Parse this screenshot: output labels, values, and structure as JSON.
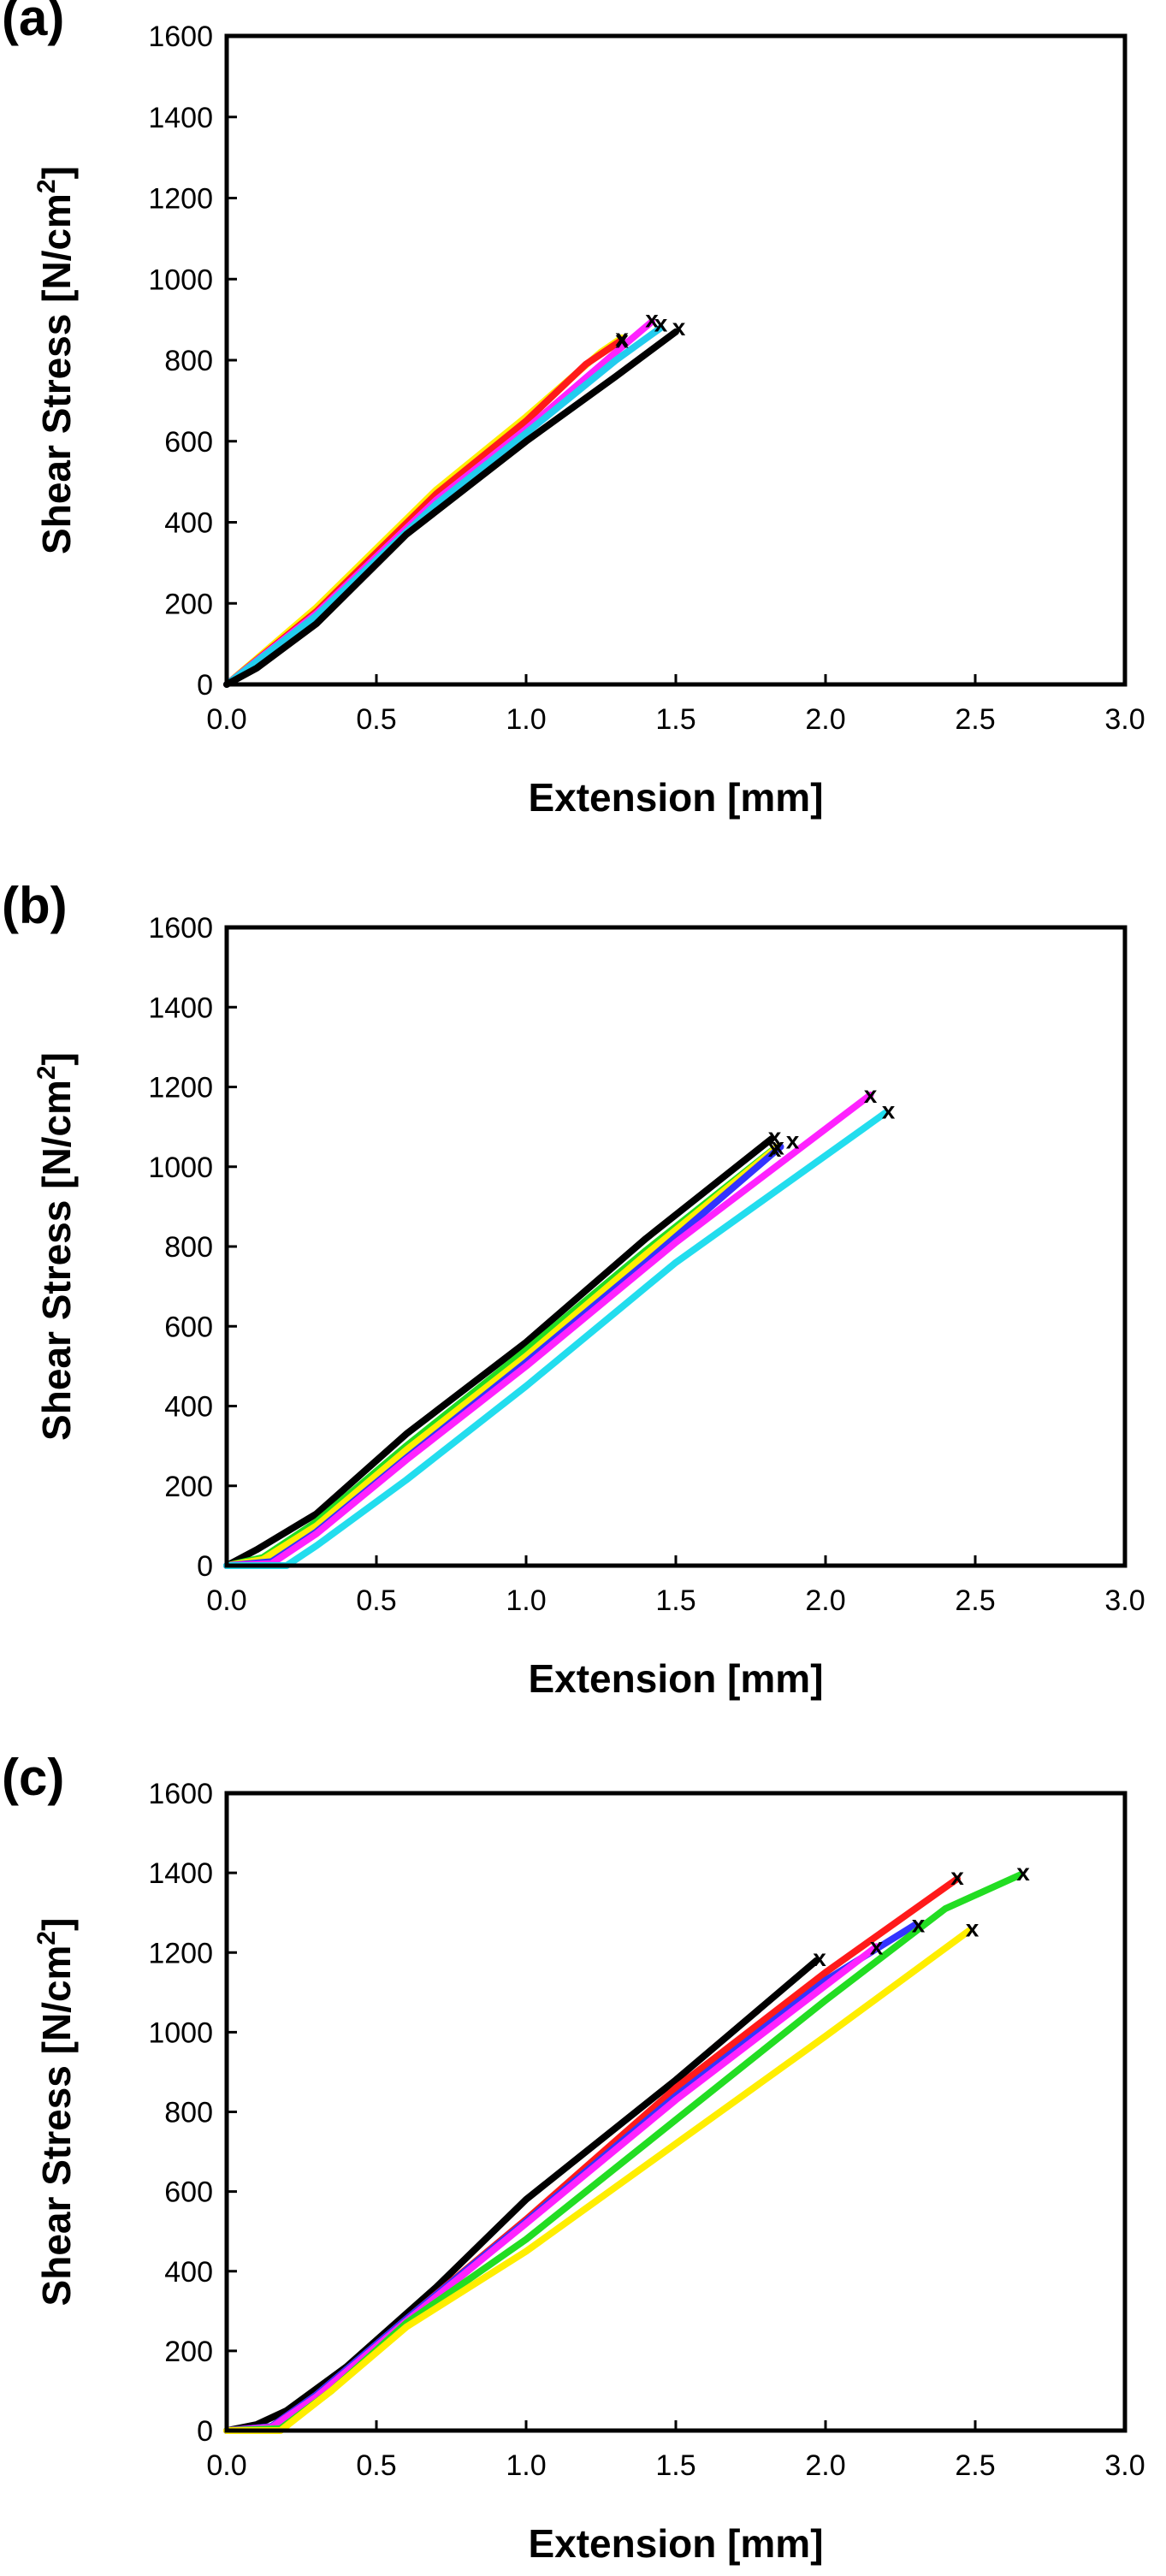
{
  "chart_data": [
    {
      "type": "line",
      "panel_label": "(a)",
      "xlabel": "Extension [mm]",
      "ylabel_main": "Shear Stress [N/cm",
      "ylabel_sup": "2",
      "ylabel_end": "]",
      "xlim": [
        0,
        3.0
      ],
      "ylim": [
        0,
        1600
      ],
      "xticks": [
        "0.0",
        "0.5",
        "1.0",
        "1.5",
        "2.0",
        "2.5",
        "3.0"
      ],
      "yticks": [
        "0",
        "200",
        "400",
        "600",
        "800",
        "1000",
        "1200",
        "1400",
        "1600"
      ],
      "failure_marker": "x",
      "series": [
        {
          "color": "#ffee00",
          "points": [
            [
              0,
              0
            ],
            [
              0.3,
              190
            ],
            [
              0.7,
              480
            ],
            [
              1.0,
              660
            ],
            [
              1.25,
              820
            ],
            [
              1.32,
              855
            ]
          ],
          "fail": [
            1.32,
            855
          ]
        },
        {
          "color": "#ff1a1a",
          "points": [
            [
              0,
              0
            ],
            [
              0.3,
              180
            ],
            [
              0.7,
              470
            ],
            [
              1.0,
              650
            ],
            [
              1.2,
              790
            ],
            [
              1.32,
              850
            ]
          ],
          "fail": [
            1.32,
            850
          ]
        },
        {
          "color": "#ff22ff",
          "points": [
            [
              0,
              0
            ],
            [
              0.3,
              175
            ],
            [
              0.7,
              455
            ],
            [
              1.0,
              630
            ],
            [
              1.3,
              820
            ],
            [
              1.42,
              895
            ]
          ],
          "fail": [
            1.42,
            900
          ]
        },
        {
          "color": "#22ccee",
          "points": [
            [
              0,
              0
            ],
            [
              0.3,
              170
            ],
            [
              0.7,
              445
            ],
            [
              1.0,
              620
            ],
            [
              1.3,
              800
            ],
            [
              1.45,
              880
            ]
          ],
          "fail": [
            1.45,
            890
          ]
        },
        {
          "color": "#000000",
          "points": [
            [
              0,
              0
            ],
            [
              0.1,
              40
            ],
            [
              0.3,
              150
            ],
            [
              0.6,
              370
            ],
            [
              1.0,
              600
            ],
            [
              1.3,
              760
            ],
            [
              1.5,
              870
            ]
          ],
          "fail": [
            1.51,
            880
          ]
        }
      ]
    },
    {
      "type": "line",
      "panel_label": "(b)",
      "xlabel": "Extension [mm]",
      "ylabel_main": "Shear Stress [N/cm",
      "ylabel_sup": "2",
      "ylabel_end": "]",
      "xlim": [
        0,
        3.0
      ],
      "ylim": [
        0,
        1600
      ],
      "xticks": [
        "0.0",
        "0.5",
        "1.0",
        "1.5",
        "2.0",
        "2.5",
        "3.0"
      ],
      "yticks": [
        "0",
        "200",
        "400",
        "600",
        "800",
        "1000",
        "1200",
        "1400",
        "1600"
      ],
      "failure_marker": "x",
      "series": [
        {
          "color": "#000000",
          "points": [
            [
              0,
              0
            ],
            [
              0.1,
              40
            ],
            [
              0.3,
              130
            ],
            [
              0.6,
              330
            ],
            [
              1.0,
              560
            ],
            [
              1.4,
              820
            ],
            [
              1.82,
              1070
            ]
          ],
          "fail": [
            1.83,
            1075
          ]
        },
        {
          "color": "#22dd22",
          "points": [
            [
              0,
              0
            ],
            [
              0.12,
              20
            ],
            [
              0.3,
              110
            ],
            [
              0.6,
              300
            ],
            [
              1.0,
              540
            ],
            [
              1.4,
              790
            ],
            [
              1.82,
              1040
            ]
          ],
          "fail": [
            1.83,
            1045
          ]
        },
        {
          "color": "#ffee00",
          "points": [
            [
              0,
              0
            ],
            [
              0.12,
              15
            ],
            [
              0.3,
              100
            ],
            [
              0.6,
              290
            ],
            [
              1.0,
              525
            ],
            [
              1.4,
              780
            ],
            [
              1.84,
              1050
            ]
          ],
          "fail": [
            1.84,
            1050
          ]
        },
        {
          "color": "#3333ff",
          "points": [
            [
              0,
              0
            ],
            [
              0.15,
              10
            ],
            [
              0.3,
              85
            ],
            [
              0.6,
              270
            ],
            [
              1.0,
              510
            ],
            [
              1.4,
              760
            ],
            [
              1.85,
              1050
            ]
          ],
          "fail": [
            1.89,
            1065
          ]
        },
        {
          "color": "#ff22ff",
          "points": [
            [
              0,
              0
            ],
            [
              0.15,
              5
            ],
            [
              0.3,
              80
            ],
            [
              0.6,
              265
            ],
            [
              1.0,
              500
            ],
            [
              1.5,
              810
            ],
            [
              2.15,
              1180
            ]
          ],
          "fail": [
            2.15,
            1180
          ]
        },
        {
          "color": "#22ddee",
          "points": [
            [
              0,
              0
            ],
            [
              0.2,
              0
            ],
            [
              0.3,
              50
            ],
            [
              0.6,
              215
            ],
            [
              1.0,
              450
            ],
            [
              1.5,
              760
            ],
            [
              2.2,
              1135
            ]
          ],
          "fail": [
            2.21,
            1140
          ]
        }
      ]
    },
    {
      "type": "line",
      "panel_label": "(c)",
      "xlabel": "Extension [mm]",
      "ylabel_main": "Shear Stress [N/cm",
      "ylabel_sup": "2",
      "ylabel_end": "]",
      "xlim": [
        0,
        3.0
      ],
      "ylim": [
        0,
        1600
      ],
      "xticks": [
        "0.0",
        "0.5",
        "1.0",
        "1.5",
        "2.0",
        "2.5",
        "3.0"
      ],
      "yticks": [
        "0",
        "200",
        "400",
        "600",
        "800",
        "1000",
        "1200",
        "1400",
        "1600"
      ],
      "failure_marker": "x",
      "series": [
        {
          "color": "#000000",
          "points": [
            [
              0,
              0
            ],
            [
              0.1,
              15
            ],
            [
              0.2,
              50
            ],
            [
              0.4,
              160
            ],
            [
              0.7,
              360
            ],
            [
              1.0,
              580
            ],
            [
              1.5,
              880
            ],
            [
              1.97,
              1180
            ]
          ],
          "fail": [
            1.98,
            1185
          ]
        },
        {
          "color": "#ff1a1a",
          "points": [
            [
              0,
              0
            ],
            [
              0.15,
              10
            ],
            [
              0.3,
              90
            ],
            [
              0.6,
              280
            ],
            [
              1.0,
              530
            ],
            [
              1.5,
              860
            ],
            [
              2.0,
              1150
            ],
            [
              2.44,
              1385
            ]
          ],
          "fail": [
            2.44,
            1390
          ]
        },
        {
          "color": "#3333ff",
          "points": [
            [
              0,
              0
            ],
            [
              0.15,
              10
            ],
            [
              0.3,
              90
            ],
            [
              0.6,
              280
            ],
            [
              1.0,
              525
            ],
            [
              1.5,
              840
            ],
            [
              2.0,
              1130
            ],
            [
              2.3,
              1270
            ]
          ],
          "fail": [
            2.31,
            1270
          ]
        },
        {
          "color": "#ff22ff",
          "points": [
            [
              0,
              0
            ],
            [
              0.15,
              8
            ],
            [
              0.3,
              85
            ],
            [
              0.6,
              275
            ],
            [
              1.0,
              520
            ],
            [
              1.5,
              830
            ],
            [
              2.17,
              1215
            ]
          ],
          "fail": [
            2.17,
            1215
          ]
        },
        {
          "color": "#22dd22",
          "points": [
            [
              0,
              0
            ],
            [
              0.18,
              5
            ],
            [
              0.35,
              100
            ],
            [
              0.6,
              270
            ],
            [
              1.0,
              480
            ],
            [
              1.5,
              780
            ],
            [
              2.0,
              1080
            ],
            [
              2.4,
              1310
            ],
            [
              2.65,
              1395
            ]
          ],
          "fail": [
            2.66,
            1400
          ]
        },
        {
          "color": "#ffee00",
          "points": [
            [
              0,
              0
            ],
            [
              0.18,
              0
            ],
            [
              0.35,
              100
            ],
            [
              0.6,
              260
            ],
            [
              1.0,
              450
            ],
            [
              1.5,
              720
            ],
            [
              2.0,
              990
            ],
            [
              2.48,
              1255
            ]
          ],
          "fail": [
            2.49,
            1260
          ]
        }
      ]
    }
  ]
}
